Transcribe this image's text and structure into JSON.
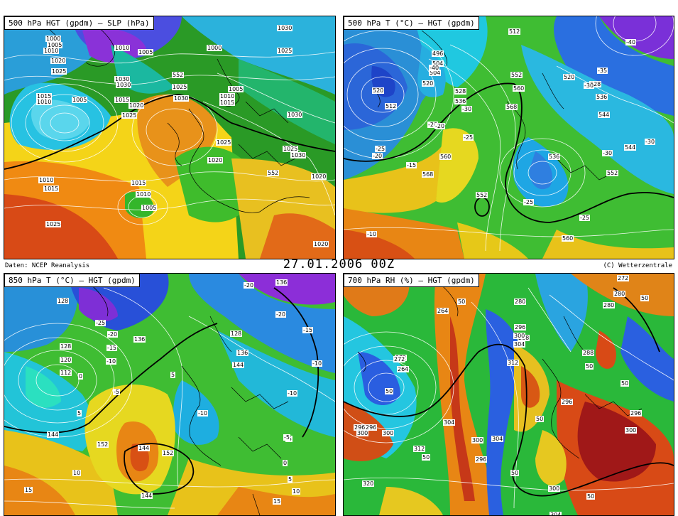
{
  "header": {
    "source": "Daten: NCEP Reanalysis",
    "datetime": "27.01.2006 00Z",
    "copyright": "(C) Wetterzentrale"
  },
  "panels": [
    {
      "title": "500 hPa HGT (gpdm) — SLP (hPa)",
      "labels": [
        "1000",
        "1005",
        "1010",
        "1020",
        "1025",
        "1030",
        "1015",
        "1010",
        "1010",
        "1005",
        "1030",
        "552",
        "1025",
        "1030",
        "1015",
        "1020",
        "1025",
        "1005",
        "1025",
        "1020",
        "1030",
        "1025",
        "1030",
        "552",
        "1020",
        "1010",
        "1015",
        "1015",
        "1010",
        "1005",
        "1025",
        "1020",
        "1030",
        "1000",
        "1005",
        "1010",
        "1015",
        "1025"
      ]
    },
    {
      "title": "500 hPa T (°C) — HGT (gpdm)",
      "labels": [
        "512",
        "504",
        "496",
        "504",
        "-40",
        "520",
        "512",
        "520",
        "528",
        "536",
        "552",
        "560",
        "568",
        "-30",
        "-20",
        "-25",
        "520",
        "528",
        "536",
        "-35",
        "-40",
        "544",
        "-30",
        "536",
        "-30",
        "-25",
        "552",
        "560",
        "-15",
        "568",
        "-25",
        "-20",
        "544",
        "-30",
        "560",
        "552",
        "-25",
        "-10",
        "-20"
      ]
    },
    {
      "title": "850 hPa T (°C) — HGT (gpdm)",
      "labels": [
        "128",
        "-20",
        "136",
        "-25",
        "-20",
        "-15",
        "-10",
        "136",
        "128",
        "120",
        "112",
        "0",
        "-5",
        "5",
        "144",
        "152",
        "128",
        "136",
        "144",
        "-10",
        "-15",
        "-20",
        "-10",
        "-5",
        "144",
        "152",
        "-10",
        "-5",
        "5",
        "10",
        "15",
        "0",
        "5",
        "144",
        "15",
        "10"
      ]
    },
    {
      "title": "700 hPa RH (%) — HGT (gpdm)",
      "labels": [
        "272",
        "280",
        "50",
        "264",
        "50",
        "280",
        "288",
        "296",
        "300",
        "304",
        "312",
        "272",
        "264",
        "50",
        "296",
        "300",
        "304",
        "296",
        "300",
        "50",
        "50",
        "304",
        "296",
        "300",
        "320",
        "50",
        "312",
        "50",
        "288",
        "296",
        "300",
        "50",
        "280",
        "272",
        "296",
        "300",
        "50",
        "304"
      ]
    }
  ]
}
